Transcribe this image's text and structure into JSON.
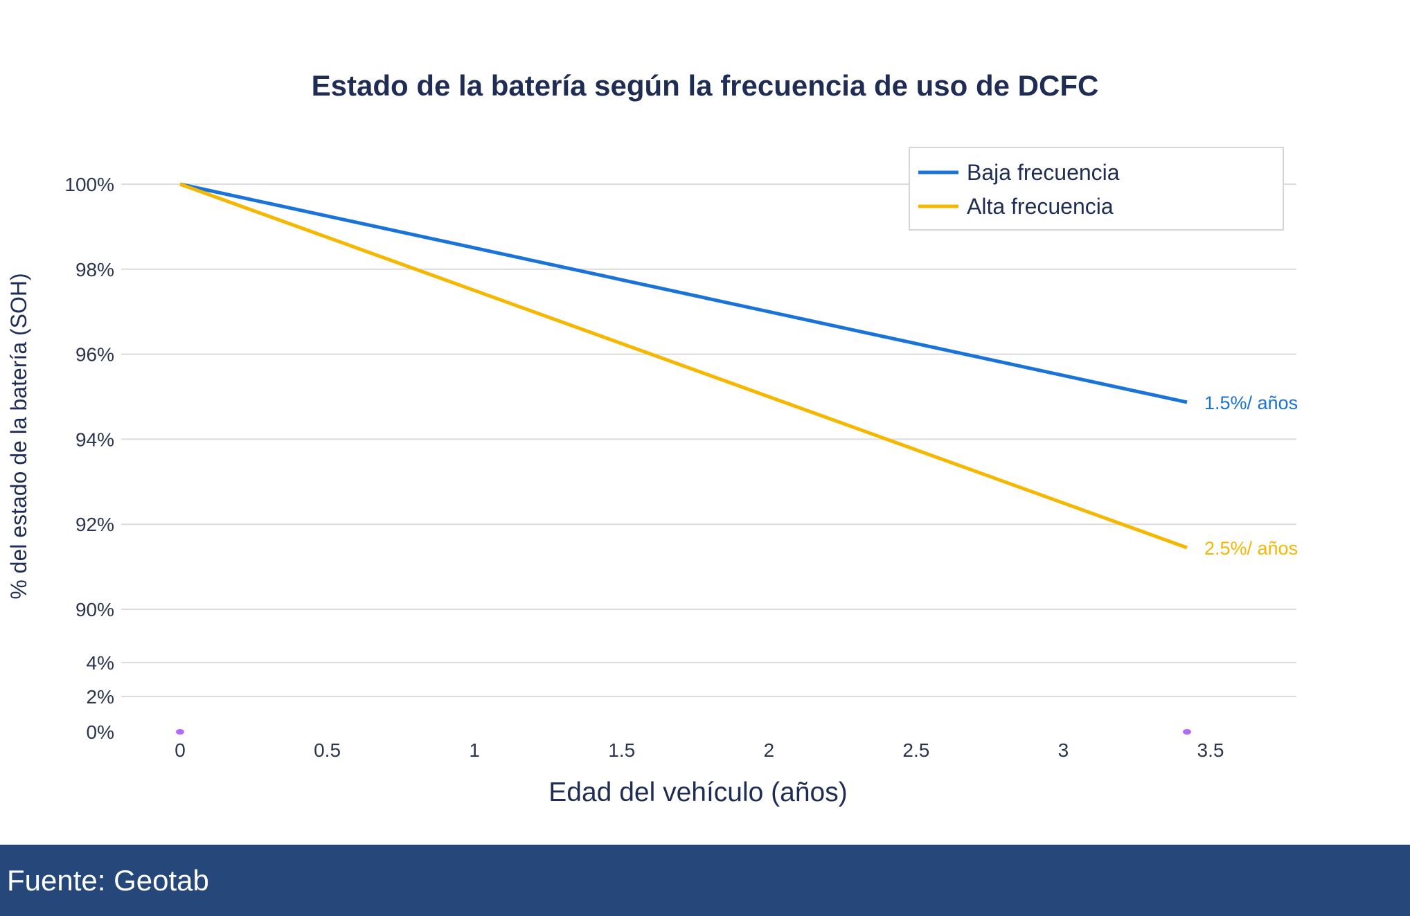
{
  "chart_data": {
    "type": "line",
    "title": "Estado de la batería según la frecuencia de uso de DCFC",
    "xlabel": "Edad del vehículo (años)",
    "ylabel": "% del estado de la batería (SOH)",
    "xlim": [
      -0.2,
      3.8
    ],
    "x_ticks": [
      "0",
      "0.5",
      "1",
      "1.5",
      "2",
      "2.5",
      "3",
      "3.5"
    ],
    "y_ticks": [
      "0%",
      "2%",
      "4%",
      "90%",
      "92%",
      "94%",
      "96%",
      "98%",
      "100%"
    ],
    "y_axis_break": "between 4% and 90%",
    "grid": true,
    "legend_position": "top-right",
    "series": [
      {
        "name": "Baja frecuencia",
        "color": "#1a73d6",
        "x": [
          0,
          3.42
        ],
        "y": [
          100,
          94.87
        ],
        "annotation": "1.5%/ años"
      },
      {
        "name": "Alta frecuencia",
        "color": "#f5b700",
        "x": [
          0,
          3.42
        ],
        "y": [
          100,
          91.45
        ],
        "annotation": "2.5%/ años"
      }
    ],
    "markers": {
      "color": "#b36bff",
      "x": [
        0,
        3.42
      ],
      "y": [
        0,
        0
      ]
    }
  },
  "footer": {
    "source": "Fuente: Geotab"
  }
}
